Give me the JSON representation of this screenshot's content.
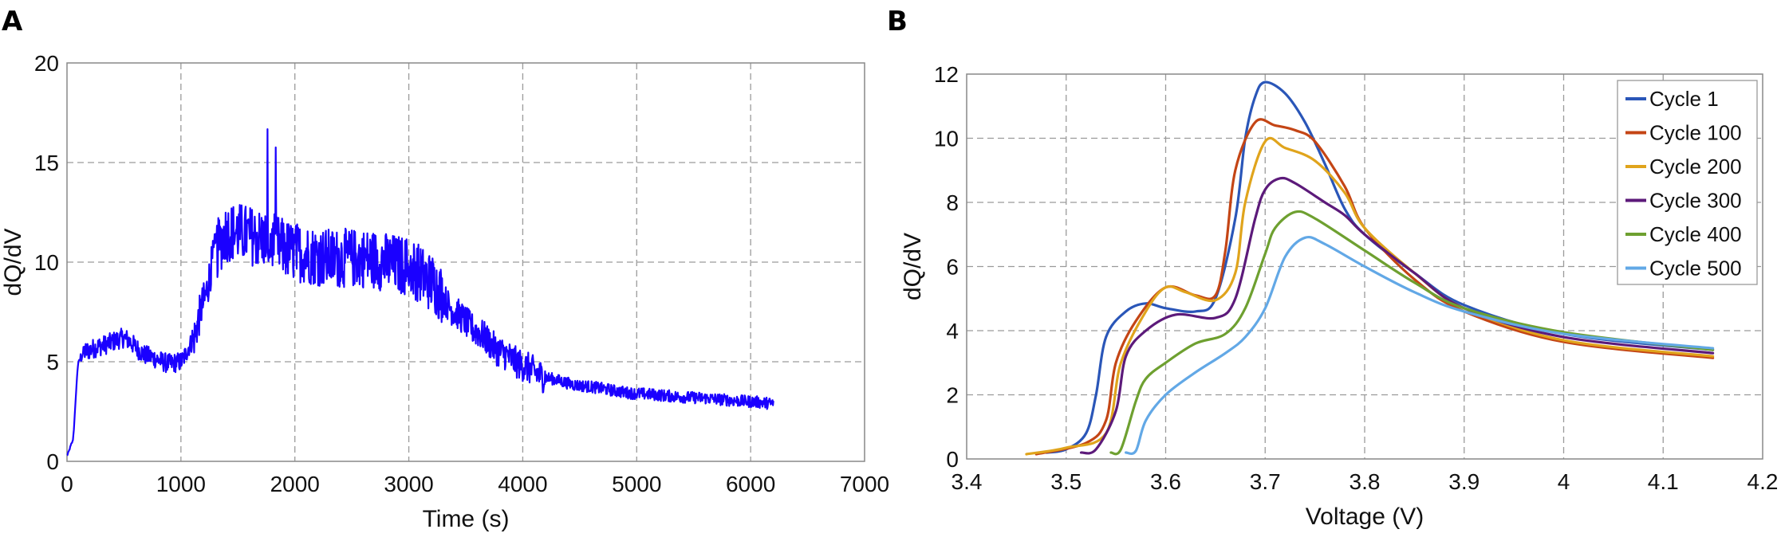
{
  "panels": {
    "a": "A",
    "b": "B"
  },
  "chart_data": [
    {
      "type": "line",
      "panel": "A",
      "xlabel": "Time (s)",
      "ylabel": "dQ/dV",
      "xlim": [
        0,
        7000
      ],
      "ylim": [
        0,
        20
      ],
      "xticks": [
        0,
        1000,
        2000,
        3000,
        4000,
        5000,
        6000,
        7000
      ],
      "yticks": [
        0,
        5,
        10,
        15,
        20
      ],
      "grid": true,
      "color": "#1a00ff",
      "series": [
        {
          "x": [
            0,
            50,
            100,
            150,
            300,
            500,
            700,
            900,
            1000,
            1100,
            1200,
            1300,
            1400,
            1500,
            1700,
            2000,
            2300,
            2600,
            3000,
            3200,
            3400,
            3600,
            3800,
            4000,
            4200,
            4500,
            5000,
            5500,
            6000,
            6200
          ],
          "y": [
            0.3,
            1,
            5,
            5.5,
            5.8,
            6.2,
            5.3,
            4.9,
            5,
            6,
            8,
            10.5,
            11.5,
            11.5,
            11.2,
            10.5,
            10.2,
            10.2,
            9.8,
            9,
            7.5,
            6.5,
            5.5,
            4.8,
            4.2,
            3.8,
            3.4,
            3.2,
            3.0,
            2.9
          ]
        }
      ]
    },
    {
      "type": "line",
      "panel": "B",
      "xlabel": "Voltage (V)",
      "ylabel": "dQ/dV",
      "xlim": [
        3.4,
        4.2
      ],
      "ylim": [
        0,
        12
      ],
      "xticks": [
        "3.4",
        "3.5",
        "3.6",
        "3.7",
        "3.8",
        "3.9",
        "4",
        "4.1",
        "4.2"
      ],
      "yticks": [
        "0",
        "2",
        "4",
        "6",
        "8",
        "10",
        "12"
      ],
      "grid": true,
      "legend": "top-right",
      "series": [
        {
          "name": "Cycle 1",
          "color": "#2a56b8",
          "x": [
            3.48,
            3.5,
            3.52,
            3.53,
            3.54,
            3.56,
            3.58,
            3.6,
            3.63,
            3.65,
            3.67,
            3.68,
            3.69,
            3.7,
            3.72,
            3.74,
            3.76,
            3.78,
            3.8,
            3.85,
            3.9,
            4.0,
            4.15
          ],
          "y": [
            0.2,
            0.3,
            0.8,
            2,
            3.8,
            4.6,
            4.85,
            4.7,
            4.6,
            5.0,
            7.5,
            10,
            11.3,
            11.75,
            11.4,
            10.5,
            9.2,
            7.8,
            7.0,
            5.8,
            4.8,
            3.9,
            3.4
          ]
        },
        {
          "name": "Cycle 100",
          "color": "#c44515",
          "x": [
            3.47,
            3.52,
            3.54,
            3.55,
            3.57,
            3.6,
            3.63,
            3.65,
            3.66,
            3.67,
            3.69,
            3.71,
            3.73,
            3.75,
            3.78,
            3.8,
            3.85,
            3.9,
            4.0,
            4.15
          ],
          "y": [
            0.15,
            0.5,
            1.2,
            3,
            4.3,
            5.35,
            5.1,
            5.1,
            6.5,
            9,
            10.5,
            10.4,
            10.25,
            9.9,
            8.5,
            7.2,
            5.6,
            4.6,
            3.65,
            3.15
          ]
        },
        {
          "name": "Cycle 200",
          "color": "#e0a41c",
          "x": [
            3.46,
            3.5,
            3.54,
            3.555,
            3.58,
            3.6,
            3.62,
            3.65,
            3.67,
            3.68,
            3.7,
            3.72,
            3.75,
            3.78,
            3.8,
            3.85,
            3.9,
            4.0,
            4.15
          ],
          "y": [
            0.15,
            0.35,
            0.8,
            3,
            4.6,
            5.35,
            5.2,
            4.95,
            5.8,
            8,
            9.9,
            9.7,
            9.3,
            8.3,
            7.2,
            5.8,
            4.7,
            3.7,
            3.2
          ]
        },
        {
          "name": "Cycle 300",
          "color": "#5c1a7a",
          "x": [
            3.515,
            3.53,
            3.55,
            3.56,
            3.58,
            3.61,
            3.65,
            3.67,
            3.69,
            3.7,
            3.715,
            3.73,
            3.76,
            3.78,
            3.8,
            3.85,
            3.9,
            4.0,
            4.15
          ],
          "y": [
            0.2,
            0.3,
            1.5,
            3.2,
            4,
            4.5,
            4.4,
            5,
            7.5,
            8.4,
            8.75,
            8.6,
            8.0,
            7.6,
            7.0,
            5.8,
            4.7,
            3.8,
            3.3
          ]
        },
        {
          "name": "Cycle 400",
          "color": "#6ea030",
          "x": [
            3.545,
            3.555,
            3.57,
            3.58,
            3.6,
            3.63,
            3.66,
            3.68,
            3.7,
            3.71,
            3.73,
            3.75,
            3.8,
            3.85,
            3.9,
            4.0,
            4.15
          ],
          "y": [
            0.2,
            0.3,
            1.8,
            2.5,
            3,
            3.6,
            3.9,
            4.7,
            6.4,
            7.2,
            7.7,
            7.5,
            6.5,
            5.5,
            4.7,
            3.95,
            3.4
          ]
        },
        {
          "name": "Cycle 500",
          "color": "#62a8e6",
          "x": [
            3.56,
            3.57,
            3.58,
            3.6,
            3.63,
            3.66,
            3.68,
            3.7,
            3.72,
            3.74,
            3.76,
            3.8,
            3.85,
            3.9,
            4.0,
            4.15
          ],
          "y": [
            0.2,
            0.25,
            1.2,
            2.0,
            2.7,
            3.3,
            3.8,
            4.7,
            6.3,
            6.9,
            6.7,
            6.0,
            5.2,
            4.6,
            3.9,
            3.45
          ]
        }
      ]
    }
  ]
}
